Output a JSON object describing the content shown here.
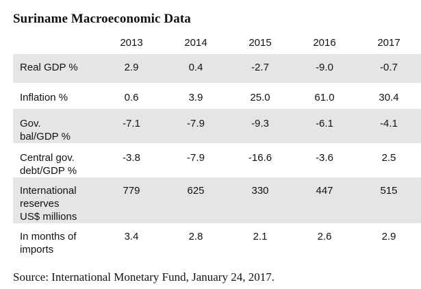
{
  "title": "Suriname Macroeconomic Data",
  "years": [
    "2013",
    "2014",
    "2015",
    "2016",
    "2017"
  ],
  "rows": [
    {
      "label": "Real GDP %",
      "values": [
        "2.9",
        "0.4",
        "-2.7",
        "-9.0",
        "-0.7"
      ]
    },
    {
      "label": "Inflation %",
      "values": [
        "0.6",
        "3.9",
        "25.0",
        "61.0",
        "30.4"
      ]
    },
    {
      "label": "Gov.\nbal/GDP %",
      "values": [
        "-7.1",
        "-7.9",
        "-9.3",
        "-6.1",
        "-4.1"
      ]
    },
    {
      "label": "Central gov.\ndebt/GDP %",
      "values": [
        "-3.8",
        "-7.9",
        "-16.6",
        "-3.6",
        "2.5"
      ]
    },
    {
      "label": "International\nreserves\nUS$ millions",
      "values": [
        "779",
        "625",
        "330",
        "447",
        "515"
      ]
    },
    {
      "label": "In months of\nimports",
      "values": [
        "3.4",
        "2.8",
        "2.1",
        "2.6",
        "2.9"
      ]
    }
  ],
  "source": "Source: International Monetary Fund, January 24, 2017.",
  "colors": {
    "row_shade": "#e5e5e5",
    "text": "#111111",
    "background": "#ffffff"
  }
}
